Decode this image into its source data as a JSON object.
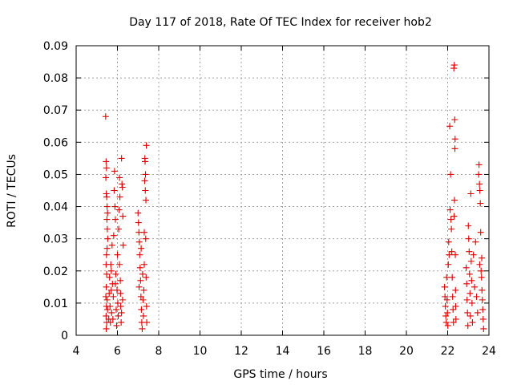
{
  "chart_data": {
    "type": "scatter",
    "title": "Day 117 of 2018, Rate Of TEC Index for receiver hob2",
    "xlabel": "GPS time / hours",
    "ylabel": "ROTI / TECUs",
    "xlim": [
      4,
      24
    ],
    "ylim": [
      0,
      0.09
    ],
    "xticks": [
      4,
      6,
      8,
      10,
      12,
      14,
      16,
      18,
      20,
      22,
      24
    ],
    "xtick_labels": [
      "4",
      "6",
      "8",
      "10",
      "12",
      "14",
      "16",
      "18",
      "20",
      "22",
      "24"
    ],
    "yticks": [
      0,
      0.01,
      0.02,
      0.03,
      0.04,
      0.05,
      0.06,
      0.07,
      0.08,
      0.09
    ],
    "ytick_labels": [
      "0",
      "0.01",
      "0.02",
      "0.03",
      "0.04",
      "0.05",
      "0.06",
      "0.07",
      "0.08",
      "0.09"
    ],
    "grid": true,
    "marker": "+",
    "color": "#dd0000",
    "series": [
      {
        "name": "ROTI",
        "points": [
          [
            5.43,
            0.068
          ],
          [
            5.45,
            0.054
          ],
          [
            5.47,
            0.052
          ],
          [
            5.44,
            0.049
          ],
          [
            5.46,
            0.044
          ],
          [
            5.48,
            0.043
          ],
          [
            5.5,
            0.04
          ],
          [
            5.52,
            0.038
          ],
          [
            5.49,
            0.036
          ],
          [
            5.51,
            0.033
          ],
          [
            5.53,
            0.03
          ],
          [
            5.5,
            0.027
          ],
          [
            5.47,
            0.025
          ],
          [
            5.45,
            0.022
          ],
          [
            5.48,
            0.019
          ],
          [
            5.46,
            0.015
          ],
          [
            5.44,
            0.012
          ],
          [
            5.47,
            0.009
          ],
          [
            5.45,
            0.006
          ],
          [
            5.48,
            0.004
          ],
          [
            5.46,
            0.002
          ],
          [
            5.5,
            0.011
          ],
          [
            5.52,
            0.008
          ],
          [
            5.58,
            0.005
          ],
          [
            5.6,
            0.013
          ],
          [
            5.62,
            0.018
          ],
          [
            5.64,
            0.009
          ],
          [
            5.66,
            0.004
          ],
          [
            5.68,
            0.022
          ],
          [
            5.7,
            0.014
          ],
          [
            5.72,
            0.007
          ],
          [
            5.74,
            0.028
          ],
          [
            5.76,
            0.016
          ],
          [
            5.78,
            0.005
          ],
          [
            5.8,
            0.012
          ],
          [
            5.82,
            0.031
          ],
          [
            5.84,
            0.045
          ],
          [
            5.86,
            0.051
          ],
          [
            5.88,
            0.04
          ],
          [
            5.9,
            0.036
          ],
          [
            5.92,
            0.019
          ],
          [
            5.94,
            0.008
          ],
          [
            5.96,
            0.003
          ],
          [
            5.98,
            0.014
          ],
          [
            6.0,
            0.025
          ],
          [
            6.02,
            0.01
          ],
          [
            6.04,
            0.006
          ],
          [
            6.06,
            0.033
          ],
          [
            6.08,
            0.039
          ],
          [
            6.1,
            0.049
          ],
          [
            6.12,
            0.043
          ],
          [
            6.14,
            0.017
          ],
          [
            6.16,
            0.009
          ],
          [
            6.18,
            0.004
          ],
          [
            6.2,
            0.055
          ],
          [
            6.22,
            0.047
          ],
          [
            6.24,
            0.046
          ],
          [
            6.26,
            0.037
          ],
          [
            6.28,
            0.028
          ],
          [
            6.1,
            0.022
          ],
          [
            6.15,
            0.013
          ],
          [
            6.2,
            0.007
          ],
          [
            6.25,
            0.011
          ],
          [
            5.7,
            0.02
          ],
          [
            5.9,
            0.016
          ],
          [
            7.0,
            0.038
          ],
          [
            7.02,
            0.035
          ],
          [
            7.04,
            0.032
          ],
          [
            7.06,
            0.029
          ],
          [
            7.08,
            0.025
          ],
          [
            7.1,
            0.021
          ],
          [
            7.12,
            0.017
          ],
          [
            7.14,
            0.012
          ],
          [
            7.16,
            0.008
          ],
          [
            7.18,
            0.004
          ],
          [
            7.2,
            0.002
          ],
          [
            7.05,
            0.015
          ],
          [
            7.15,
            0.027
          ],
          [
            7.22,
            0.019
          ],
          [
            7.24,
            0.011
          ],
          [
            7.26,
            0.006
          ],
          [
            7.28,
            0.014
          ],
          [
            7.3,
            0.022
          ],
          [
            7.32,
            0.048
          ],
          [
            7.33,
            0.055
          ],
          [
            7.34,
            0.054
          ],
          [
            7.36,
            0.05
          ],
          [
            7.35,
            0.045
          ],
          [
            7.38,
            0.042
          ],
          [
            7.4,
            0.059
          ],
          [
            7.37,
            0.03
          ],
          [
            7.39,
            0.018
          ],
          [
            7.41,
            0.009
          ],
          [
            7.42,
            0.004
          ],
          [
            7.3,
            0.032
          ],
          [
            21.85,
            0.015
          ],
          [
            21.87,
            0.012
          ],
          [
            21.89,
            0.009
          ],
          [
            21.91,
            0.006
          ],
          [
            21.93,
            0.004
          ],
          [
            21.95,
            0.018
          ],
          [
            21.97,
            0.011
          ],
          [
            21.99,
            0.007
          ],
          [
            22.01,
            0.003
          ],
          [
            22.03,
            0.022
          ],
          [
            22.05,
            0.029
          ],
          [
            22.07,
            0.025
          ],
          [
            22.1,
            0.065
          ],
          [
            22.12,
            0.039
          ],
          [
            22.14,
            0.05
          ],
          [
            22.16,
            0.036
          ],
          [
            22.18,
            0.033
          ],
          [
            22.2,
            0.026
          ],
          [
            22.22,
            0.018
          ],
          [
            22.24,
            0.012
          ],
          [
            22.26,
            0.008
          ],
          [
            22.28,
            0.004
          ],
          [
            22.3,
            0.083
          ],
          [
            22.32,
            0.084
          ],
          [
            22.34,
            0.067
          ],
          [
            22.36,
            0.061
          ],
          [
            22.35,
            0.058
          ],
          [
            22.33,
            0.042
          ],
          [
            22.31,
            0.037
          ],
          [
            22.37,
            0.025
          ],
          [
            22.38,
            0.014
          ],
          [
            22.39,
            0.009
          ],
          [
            22.4,
            0.005
          ],
          [
            22.9,
            0.021
          ],
          [
            22.92,
            0.016
          ],
          [
            22.94,
            0.011
          ],
          [
            22.96,
            0.007
          ],
          [
            22.98,
            0.003
          ],
          [
            23.0,
            0.034
          ],
          [
            23.02,
            0.03
          ],
          [
            23.04,
            0.026
          ],
          [
            23.06,
            0.019
          ],
          [
            23.08,
            0.013
          ],
          [
            23.1,
            0.006
          ],
          [
            23.12,
            0.044
          ],
          [
            23.14,
            0.023
          ],
          [
            23.16,
            0.017
          ],
          [
            23.18,
            0.01
          ],
          [
            23.2,
            0.004
          ],
          [
            23.25,
            0.025
          ],
          [
            23.3,
            0.015
          ],
          [
            23.35,
            0.029
          ],
          [
            23.4,
            0.012
          ],
          [
            23.45,
            0.007
          ],
          [
            23.5,
            0.05
          ],
          [
            23.52,
            0.053
          ],
          [
            23.54,
            0.047
          ],
          [
            23.56,
            0.045
          ],
          [
            23.58,
            0.041
          ],
          [
            23.6,
            0.032
          ],
          [
            23.62,
            0.02
          ],
          [
            23.64,
            0.018
          ],
          [
            23.66,
            0.014
          ],
          [
            23.68,
            0.011
          ],
          [
            23.7,
            0.008
          ],
          [
            23.72,
            0.005
          ],
          [
            23.74,
            0.002
          ],
          [
            23.55,
            0.022
          ],
          [
            23.65,
            0.024
          ]
        ]
      }
    ]
  }
}
